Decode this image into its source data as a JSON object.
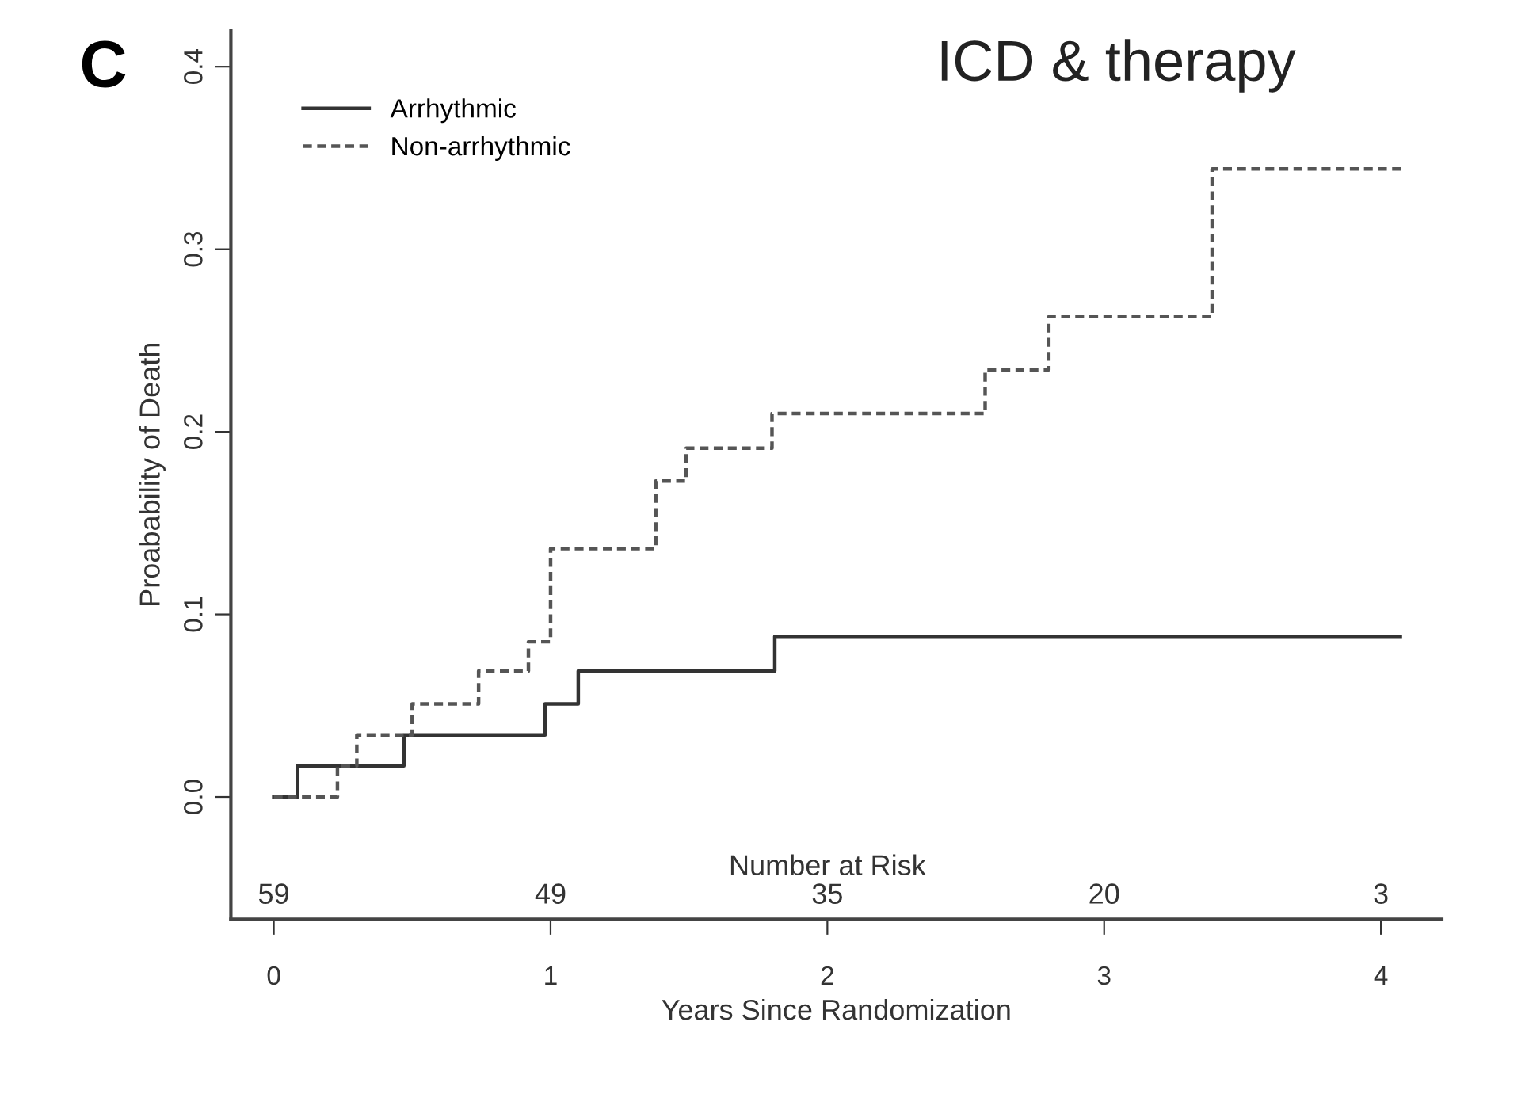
{
  "chart_data": {
    "type": "step",
    "title": "ICD & therapy",
    "xlabel": "Years Since Randomization",
    "ylabel": "Proabability of Death",
    "series": [
      {
        "name": "Arrhythmic",
        "color": "#333333",
        "line_style": "solid",
        "x": [
          0,
          0.086,
          0.47,
          0.98,
          1.1,
          1.81,
          4.07
        ],
        "values": [
          0,
          0.017,
          0.034,
          0.051,
          0.069,
          0.088,
          0.088
        ]
      },
      {
        "name": "Non-arrhythmic",
        "color": "#555555",
        "line_style": "dashed",
        "x": [
          0,
          0.23,
          0.3,
          0.5,
          0.74,
          0.92,
          1.0,
          1.38,
          1.49,
          1.8,
          2.57,
          2.8,
          3.39,
          4.09
        ],
        "values": [
          0,
          0.017,
          0.034,
          0.051,
          0.069,
          0.085,
          0.136,
          0.173,
          0.191,
          0.21,
          0.234,
          0.263,
          0.344,
          0.344
        ]
      }
    ],
    "xlim": [
      -0.155,
      4.22
    ],
    "ylim": [
      -0.067,
      0.42
    ],
    "xticks": [
      0,
      1,
      2,
      3,
      4
    ],
    "yticks": [
      {
        "value": 0,
        "label": "0.0"
      },
      {
        "value": 0.1,
        "label": "0.1"
      },
      {
        "value": 0.2,
        "label": "0.2"
      },
      {
        "value": 0.3,
        "label": "0.3"
      },
      {
        "value": 0.4,
        "label": "0.4"
      }
    ],
    "legend": "top left",
    "grid": false,
    "marker": "none",
    "annotations": [
      "C",
      "Number at Risk",
      "59",
      "49",
      "35",
      "20",
      "3"
    ]
  }
}
